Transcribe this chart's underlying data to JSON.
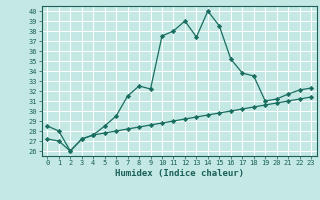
{
  "xlabel": "Humidex (Indice chaleur)",
  "background_color": "#c4e8e4",
  "grid_color": "#ffffff",
  "line_color": "#1a6e60",
  "xlim": [
    -0.5,
    23.5
  ],
  "ylim": [
    25.5,
    40.5
  ],
  "xticks": [
    0,
    1,
    2,
    3,
    4,
    5,
    6,
    7,
    8,
    9,
    10,
    11,
    12,
    13,
    14,
    15,
    16,
    17,
    18,
    19,
    20,
    21,
    22,
    23
  ],
  "yticks": [
    26,
    27,
    28,
    29,
    30,
    31,
    32,
    33,
    34,
    35,
    36,
    37,
    38,
    39,
    40
  ],
  "curve1_x": [
    0,
    1,
    2,
    3,
    4,
    5,
    6,
    7,
    8,
    9,
    10,
    11,
    12,
    13,
    14,
    15,
    16,
    17,
    18,
    19,
    20,
    21,
    22,
    23
  ],
  "curve1_y": [
    28.5,
    28.0,
    26.0,
    27.2,
    27.6,
    28.5,
    29.5,
    31.5,
    32.5,
    32.2,
    37.5,
    38.0,
    39.0,
    37.4,
    40.0,
    38.5,
    35.2,
    33.8,
    33.5,
    31.0,
    31.2,
    31.7,
    32.1,
    32.3
  ],
  "curve2_x": [
    0,
    1,
    2,
    3,
    4,
    5,
    6,
    7,
    8,
    9,
    10,
    11,
    12,
    13,
    14,
    15,
    16,
    17,
    18,
    19,
    20,
    21,
    22,
    23
  ],
  "curve2_y": [
    27.2,
    27.0,
    26.0,
    27.2,
    27.6,
    27.8,
    28.0,
    28.2,
    28.4,
    28.6,
    28.8,
    29.0,
    29.2,
    29.4,
    29.6,
    29.8,
    30.0,
    30.2,
    30.4,
    30.6,
    30.8,
    31.0,
    31.2,
    31.4
  ],
  "marker": "D",
  "markersize": 2.2,
  "linewidth": 0.9,
  "font_color": "#1a6058",
  "tick_fontsize": 5.0,
  "label_fontsize": 6.5
}
